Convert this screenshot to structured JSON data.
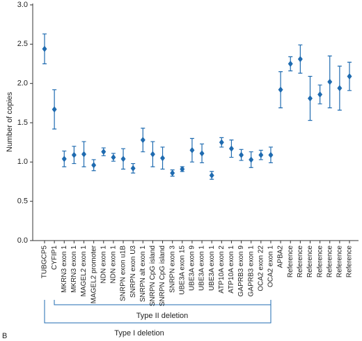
{
  "chart_data": {
    "type": "scatter",
    "y_label": "Number of copies",
    "categories": [
      "TUBGCP5",
      "CYFIP1",
      "MKRN3 exon 1",
      "MKRN3 exon 1",
      "MAGEL2 exon 1",
      "MAGEL2 promoter",
      "NDN exon 1",
      "NDN exon 1",
      "SNRPN exon u1B",
      "SNRPN exon U3",
      "SNRPN alt exon 1",
      "SNRPN CpG island",
      "SNRPN CpG island",
      "SNRPN exon 3",
      "UBE3A exon 15",
      "UBE3A exon 9",
      "UBE3A exon 1",
      "UBE3A exon 1",
      "ATP10A exon 2",
      "ATP10A exon 1",
      "GAPRB3 exon 9",
      "GAPRB3 exon 1",
      "OCA2 exon 22",
      "OCA2 exon 1",
      "APBA2",
      "Reference",
      "Reference",
      "Reference",
      "Reference",
      "Reference",
      "Reference",
      "Reference"
    ],
    "color": "#1f6bb0",
    "values": [
      2.44,
      1.67,
      1.04,
      1.09,
      1.1,
      0.96,
      1.13,
      1.06,
      1.04,
      0.92,
      1.28,
      1.1,
      1.05,
      0.86,
      0.91,
      1.15,
      1.11,
      0.83,
      1.25,
      1.17,
      1.09,
      1.03,
      1.09,
      1.09,
      1.92,
      2.25,
      2.31,
      1.81,
      1.86,
      2.02,
      1.94,
      2.09
    ],
    "errors": [
      0.19,
      0.25,
      0.1,
      0.11,
      0.16,
      0.07,
      0.05,
      0.05,
      0.13,
      0.06,
      0.15,
      0.16,
      0.14,
      0.04,
      0.03,
      0.15,
      0.12,
      0.05,
      0.06,
      0.11,
      0.07,
      0.1,
      0.06,
      0.1,
      0.23,
      0.09,
      0.18,
      0.28,
      0.12,
      0.33,
      0.28,
      0.18
    ],
    "ylim": [
      0,
      3
    ],
    "yticks": [
      {
        "value": 0,
        "label": "0.0"
      },
      {
        "value": 0.5,
        "label": "0.5"
      },
      {
        "value": 1,
        "label": "1.0"
      },
      {
        "value": 1.5,
        "label": "1.5"
      },
      {
        "value": 2,
        "label": "2.0"
      },
      {
        "value": 2.5,
        "label": "2.5"
      },
      {
        "value": 3,
        "label": "3.0"
      }
    ],
    "annotations": [
      "Type II deletion",
      "Type I deletion",
      "B"
    ]
  }
}
